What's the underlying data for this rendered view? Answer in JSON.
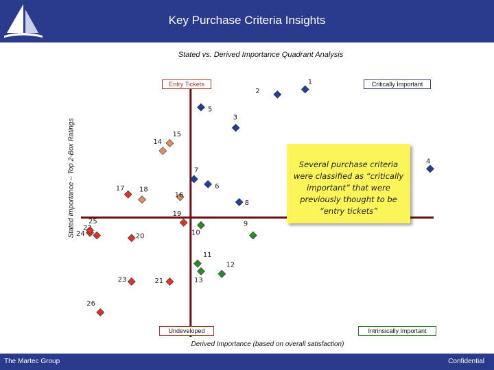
{
  "header": {
    "title": "Key Purchase Criteria Insights",
    "band_color": "#2a3a8c",
    "logo_icon": "sailboat-logo-icon"
  },
  "footer": {
    "company": "The Martec Group",
    "confidential": "Confidential"
  },
  "callout": {
    "text": "Several purchase criteria were classified as “critically important” that were previously thought to be “entry tickets”",
    "color": "#fbf55a"
  },
  "colors": {
    "red": "#d9332a",
    "blue": "#1f3f99",
    "green": "#2a8a2a",
    "orange": "#e09060",
    "axis": "#6b1010"
  },
  "chart_data": {
    "type": "scatter",
    "title": "Stated vs. Derived Importance Quadrant Analysis",
    "xlabel": "Derived Importance (based on overall satisfaction)",
    "ylabel": "Stated Importance – Top 2-Box Ratings",
    "quadrants": {
      "top_left": "Entry Tickets",
      "top_right": "Critically Important",
      "bottom_left": "Undeveloped",
      "bottom_right": "Intrinsically Important"
    },
    "points": [
      {
        "label": "1",
        "x": 0.63,
        "y": 0.94,
        "group": "blue"
      },
      {
        "label": "2",
        "x": 0.55,
        "y": 0.92,
        "group": "blue"
      },
      {
        "label": "3",
        "x": 0.43,
        "y": 0.79,
        "group": "blue"
      },
      {
        "label": "4",
        "x": 0.99,
        "y": 0.63,
        "group": "blue"
      },
      {
        "label": "5",
        "x": 0.33,
        "y": 0.87,
        "group": "blue"
      },
      {
        "label": "6",
        "x": 0.35,
        "y": 0.57,
        "group": "blue"
      },
      {
        "label": "7",
        "x": 0.31,
        "y": 0.59,
        "group": "blue"
      },
      {
        "label": "8",
        "x": 0.44,
        "y": 0.5,
        "group": "blue"
      },
      {
        "label": "9",
        "x": 0.48,
        "y": 0.37,
        "group": "green"
      },
      {
        "label": "10",
        "x": 0.33,
        "y": 0.41,
        "group": "green"
      },
      {
        "label": "11",
        "x": 0.32,
        "y": 0.26,
        "group": "green"
      },
      {
        "label": "12",
        "x": 0.39,
        "y": 0.22,
        "group": "green"
      },
      {
        "label": "13",
        "x": 0.33,
        "y": 0.23,
        "group": "green"
      },
      {
        "label": "14",
        "x": 0.22,
        "y": 0.7,
        "group": "orange"
      },
      {
        "label": "15",
        "x": 0.24,
        "y": 0.73,
        "group": "orange"
      },
      {
        "label": "16",
        "x": 0.27,
        "y": 0.52,
        "group": "orange"
      },
      {
        "label": "17",
        "x": 0.12,
        "y": 0.53,
        "group": "red"
      },
      {
        "label": "18",
        "x": 0.16,
        "y": 0.51,
        "group": "orange"
      },
      {
        "label": "19",
        "x": 0.28,
        "y": 0.42,
        "group": "red"
      },
      {
        "label": "20",
        "x": 0.13,
        "y": 0.36,
        "group": "red"
      },
      {
        "label": "21",
        "x": 0.24,
        "y": 0.19,
        "group": "red"
      },
      {
        "label": "22",
        "x": 0.03,
        "y": 0.37,
        "group": "red"
      },
      {
        "label": "23",
        "x": 0.13,
        "y": 0.19,
        "group": "red"
      },
      {
        "label": "24",
        "x": 0.01,
        "y": 0.38,
        "group": "red"
      },
      {
        "label": "25",
        "x": 0.01,
        "y": 0.39,
        "group": "red"
      },
      {
        "label": "26",
        "x": 0.04,
        "y": 0.07,
        "group": "red"
      }
    ],
    "divider_x": 0.3,
    "divider_y": 0.44,
    "xlim": [
      0,
      1
    ],
    "ylim": [
      0,
      1
    ],
    "grid": false,
    "legend": "none"
  }
}
